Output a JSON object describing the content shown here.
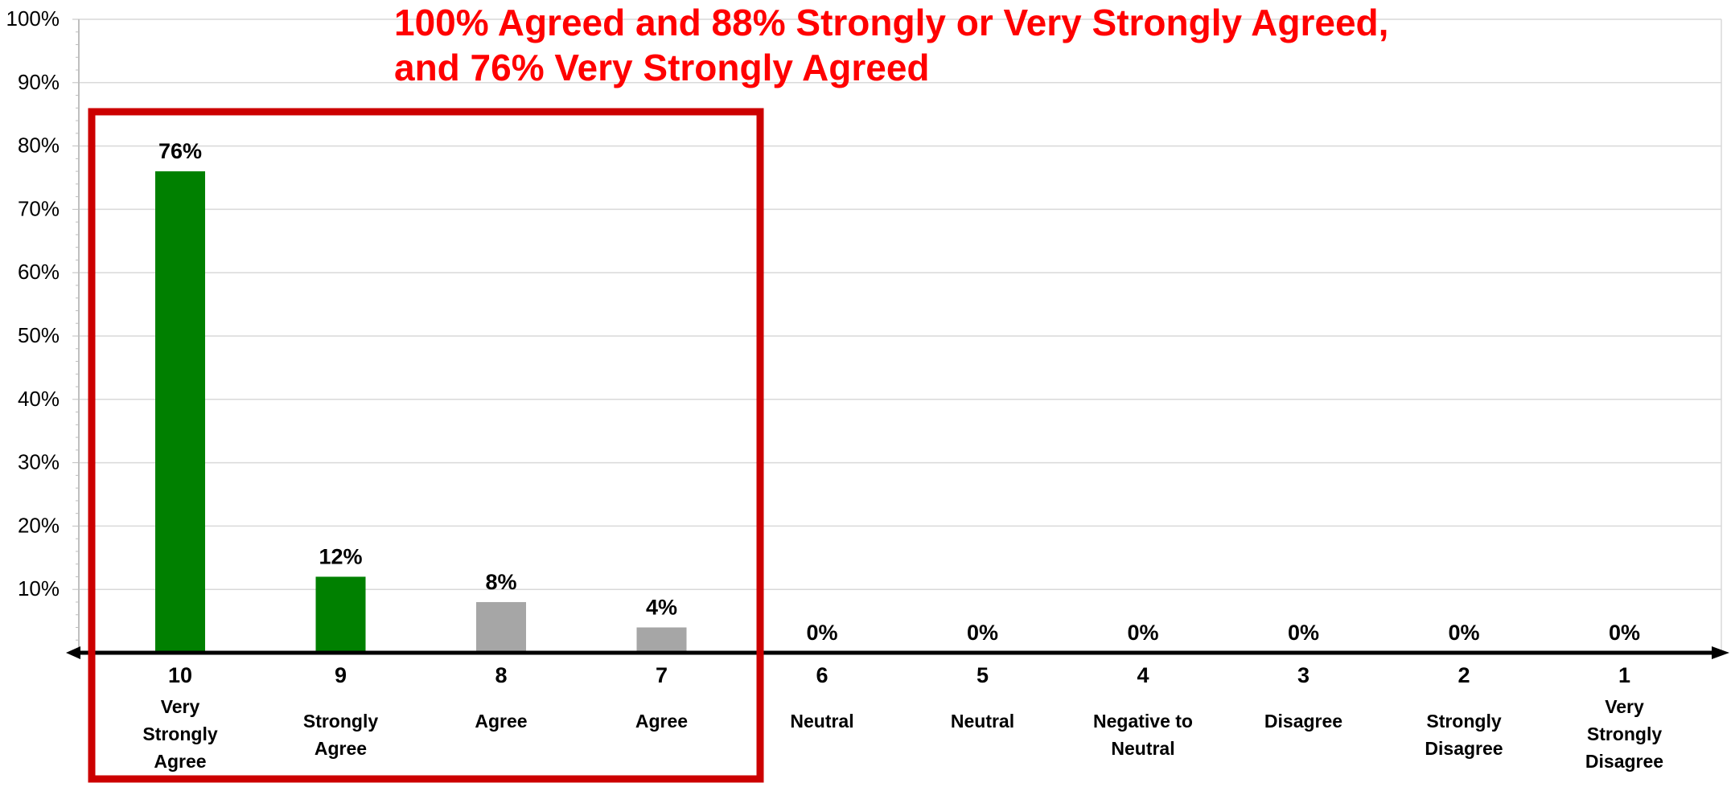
{
  "chart_data": {
    "type": "bar",
    "title": "100% Agreed and 88% Strongly or Very Strongly Agreed,\nand 76% Very Strongly Agreed",
    "title_lines": [
      "100% Agreed and 88% Strongly or Very Strongly Agreed,",
      "and 76% Very Strongly Agreed"
    ],
    "xlabel": "",
    "ylabel": "",
    "ylim": [
      0,
      100
    ],
    "yticks": [
      "10%",
      "20%",
      "30%",
      "40%",
      "50%",
      "60%",
      "70%",
      "80%",
      "90%",
      "100%"
    ],
    "grid": true,
    "categories": [
      "10",
      "9",
      "8",
      "7",
      "6",
      "5",
      "4",
      "3",
      "2",
      "1"
    ],
    "category_labels": [
      [
        "Very",
        "Strongly",
        "Agree"
      ],
      [
        "Strongly",
        "Agree"
      ],
      [
        "Agree"
      ],
      [
        "Agree"
      ],
      [
        "Neutral"
      ],
      [
        "Neutral"
      ],
      [
        "Negative to",
        "Neutral"
      ],
      [
        "Disagree"
      ],
      [
        "Strongly",
        "Disagree"
      ],
      [
        "Very",
        "Strongly",
        "Disagree"
      ]
    ],
    "values": [
      76,
      12,
      8,
      4,
      0,
      0,
      0,
      0,
      0,
      0
    ],
    "data_labels": [
      "76%",
      "12%",
      "8%",
      "4%",
      "0%",
      "0%",
      "0%",
      "0%",
      "0%",
      "0%"
    ],
    "bar_colors": [
      "#008000",
      "#008000",
      "#a6a6a6",
      "#a6a6a6",
      "#a6a6a6",
      "#a6a6a6",
      "#a6a6a6",
      "#a6a6a6",
      "#a6a6a6",
      "#a6a6a6"
    ],
    "highlight": {
      "from_category": "10",
      "to_category": "7",
      "color": "#cc0000"
    },
    "colors": {
      "title": "#ff0000",
      "grid": "#d9d9d9",
      "axis": "#000000"
    }
  }
}
